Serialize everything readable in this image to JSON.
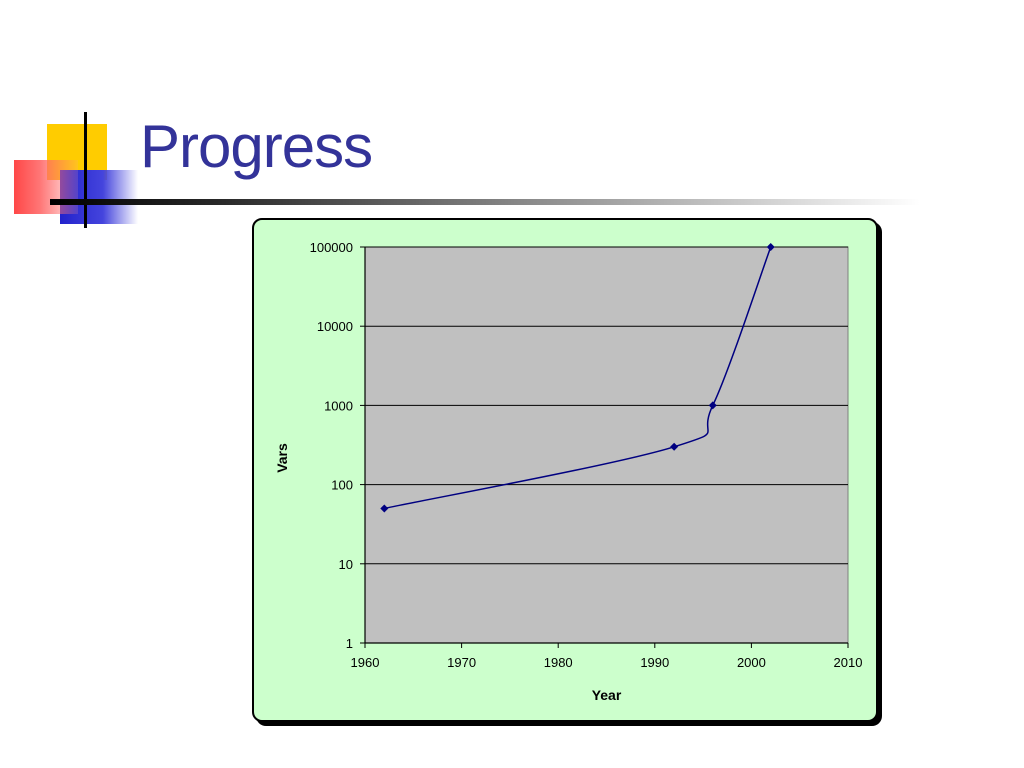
{
  "slide": {
    "title": "Progress"
  },
  "chart_data": {
    "type": "line",
    "title": "",
    "xlabel": "Year",
    "ylabel": "Vars",
    "x_scale": "linear",
    "y_scale": "log",
    "xlim": [
      1960,
      2010
    ],
    "ylim": [
      1,
      100000
    ],
    "x_ticks": [
      1960,
      1970,
      1980,
      1990,
      2000,
      2010
    ],
    "y_ticks": [
      1,
      10,
      100,
      1000,
      10000,
      100000
    ],
    "grid": "horizontal major",
    "legend": "none",
    "series": [
      {
        "points": [
          {
            "x": 1962,
            "y": 50
          },
          {
            "x": 1992,
            "y": 300
          },
          {
            "x": 1996,
            "y": 1000
          },
          {
            "x": 2002,
            "y": 100000
          }
        ],
        "color": "#000080"
      }
    ],
    "plot_background": "#c0c0c0",
    "frame_background": "#ccffcc"
  }
}
